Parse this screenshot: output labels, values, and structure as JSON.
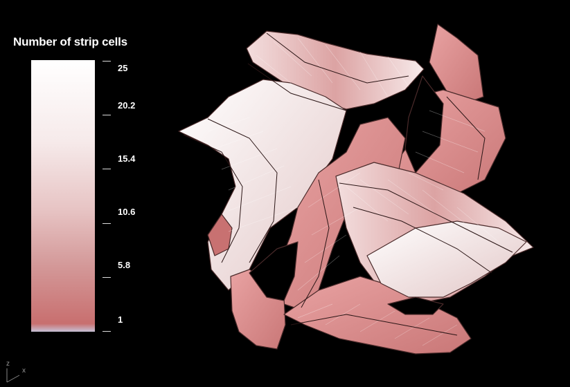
{
  "legend": {
    "title": "Number of strip cells",
    "ticks": [
      "25",
      "20.2",
      "15.4",
      "10.6",
      "5.8",
      "1"
    ]
  },
  "axis_indicator": {
    "z_label": "z",
    "x_label": "x"
  }
}
